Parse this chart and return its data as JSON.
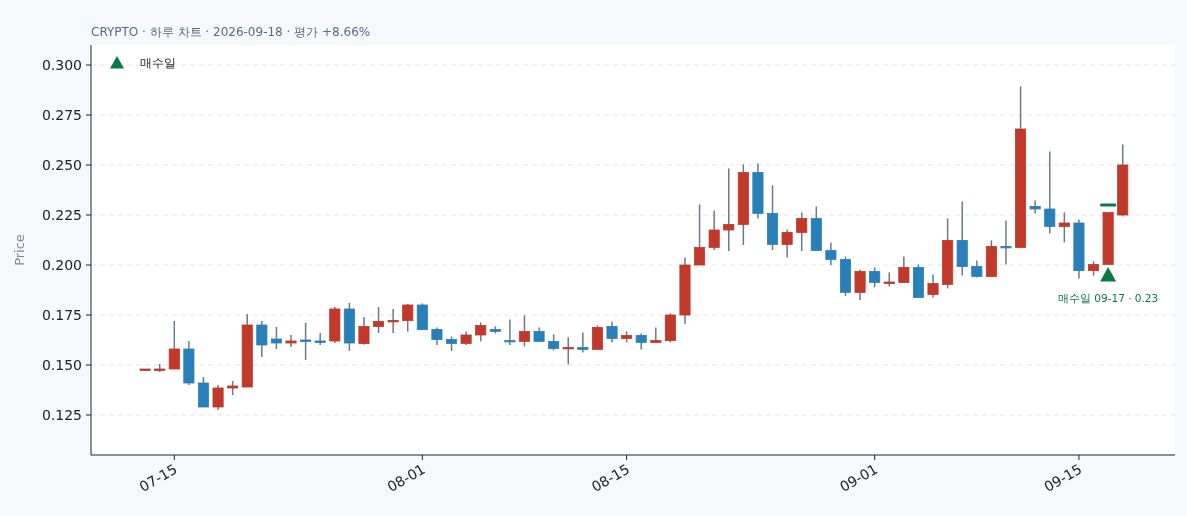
{
  "chart_data": {
    "type": "candlestick",
    "subtitle": "CRYPTO · 하루 차트 · 2026-09-18 · 평가 +8.66%",
    "ylabel": "Price",
    "x": [
      "2026-07-13",
      "2026-07-14",
      "2026-07-15",
      "2026-07-16",
      "2026-07-17",
      "2026-07-18",
      "2026-07-19",
      "2026-07-20",
      "2026-07-21",
      "2026-07-22",
      "2026-07-23",
      "2026-07-24",
      "2026-07-25",
      "2026-07-26",
      "2026-07-27",
      "2026-07-28",
      "2026-07-29",
      "2026-07-30",
      "2026-07-31",
      "2026-08-01",
      "2026-08-02",
      "2026-08-03",
      "2026-08-04",
      "2026-08-05",
      "2026-08-06",
      "2026-08-07",
      "2026-08-08",
      "2026-08-09",
      "2026-08-10",
      "2026-08-11",
      "2026-08-12",
      "2026-08-13",
      "2026-08-14",
      "2026-08-15",
      "2026-08-16",
      "2026-08-17",
      "2026-08-18",
      "2026-08-19",
      "2026-08-20",
      "2026-08-21",
      "2026-08-22",
      "2026-08-23",
      "2026-08-24",
      "2026-08-25",
      "2026-08-26",
      "2026-08-27",
      "2026-08-28",
      "2026-08-29",
      "2026-08-30",
      "2026-08-31",
      "2026-09-01",
      "2026-09-02",
      "2026-09-03",
      "2026-09-04",
      "2026-09-05",
      "2026-09-06",
      "2026-09-07",
      "2026-09-08",
      "2026-09-09",
      "2026-09-10",
      "2026-09-11",
      "2026-09-12",
      "2026-09-13",
      "2026-09-14",
      "2026-09-15",
      "2026-09-16",
      "2026-09-17",
      "2026-09-18"
    ],
    "ohlc": [
      [
        0.148,
        0.148,
        0.148,
        0.148
      ],
      [
        0.1475,
        0.1505,
        0.1465,
        0.148
      ],
      [
        0.148,
        0.172,
        0.148,
        0.158
      ],
      [
        0.158,
        0.162,
        0.14,
        0.141
      ],
      [
        0.141,
        0.144,
        0.129,
        0.129
      ],
      [
        0.129,
        0.14,
        0.1275,
        0.1385
      ],
      [
        0.1385,
        0.142,
        0.135,
        0.1395
      ],
      [
        0.139,
        0.1755,
        0.139,
        0.17
      ],
      [
        0.17,
        0.172,
        0.154,
        0.16
      ],
      [
        0.163,
        0.169,
        0.158,
        0.161
      ],
      [
        0.161,
        0.165,
        0.159,
        0.162
      ],
      [
        0.1625,
        0.171,
        0.1525,
        0.162
      ],
      [
        0.162,
        0.166,
        0.16,
        0.1618
      ],
      [
        0.162,
        0.179,
        0.161,
        0.178
      ],
      [
        0.178,
        0.181,
        0.157,
        0.161
      ],
      [
        0.1607,
        0.174,
        0.1603,
        0.1693
      ],
      [
        0.1693,
        0.179,
        0.166,
        0.1718
      ],
      [
        0.1718,
        0.178,
        0.166,
        0.1723
      ],
      [
        0.1722,
        0.1805,
        0.1667,
        0.18
      ],
      [
        0.18,
        0.1808,
        0.1677,
        0.1677
      ],
      [
        0.1678,
        0.1688,
        0.16,
        0.1627
      ],
      [
        0.1628,
        0.1643,
        0.157,
        0.1608
      ],
      [
        0.1608,
        0.1668,
        0.16,
        0.165
      ],
      [
        0.165,
        0.1713,
        0.1618,
        0.1698
      ],
      [
        0.1678,
        0.1693,
        0.1658,
        0.1668
      ],
      [
        0.1623,
        0.1728,
        0.16,
        0.1618
      ],
      [
        0.1618,
        0.1748,
        0.1593,
        0.1668
      ],
      [
        0.1668,
        0.1688,
        0.1618,
        0.1618
      ],
      [
        0.1618,
        0.1653,
        0.1573,
        0.1583
      ],
      [
        0.1583,
        0.1638,
        0.1503,
        0.1588
      ],
      [
        0.1588,
        0.1663,
        0.1563,
        0.1578
      ],
      [
        0.1578,
        0.1698,
        0.1578,
        0.1688
      ],
      [
        0.1693,
        0.1718,
        0.1613,
        0.1633
      ],
      [
        0.1633,
        0.1668,
        0.1613,
        0.1648
      ],
      [
        0.1648,
        0.1658,
        0.1578,
        0.1613
      ],
      [
        0.1613,
        0.1688,
        0.1613,
        0.1623
      ],
      [
        0.1622,
        0.1758,
        0.1613,
        0.175
      ],
      [
        0.175,
        0.2038,
        0.1705,
        0.2
      ],
      [
        0.2,
        0.2303,
        0.2,
        0.2088
      ],
      [
        0.2088,
        0.2273,
        0.2075,
        0.2175
      ],
      [
        0.2175,
        0.2483,
        0.207,
        0.2203
      ],
      [
        0.2203,
        0.2503,
        0.21,
        0.2463
      ],
      [
        0.2463,
        0.2508,
        0.2233,
        0.2258
      ],
      [
        0.2258,
        0.2398,
        0.2075,
        0.2103
      ],
      [
        0.2103,
        0.2178,
        0.2038,
        0.2163
      ],
      [
        0.2163,
        0.2263,
        0.207,
        0.2233
      ],
      [
        0.2233,
        0.2293,
        0.2073,
        0.2073
      ],
      [
        0.2073,
        0.2113,
        0.2,
        0.2028
      ],
      [
        0.2028,
        0.2042,
        0.1845,
        0.1863
      ],
      [
        0.1863,
        0.1978,
        0.1825,
        0.1968
      ],
      [
        0.1968,
        0.1988,
        0.1888,
        0.1913
      ],
      [
        0.1913,
        0.1963,
        0.1893,
        0.1915
      ],
      [
        0.1913,
        0.2043,
        0.1913,
        0.1988
      ],
      [
        0.1988,
        0.2003,
        0.1838,
        0.1838
      ],
      [
        0.1853,
        0.1953,
        0.1838,
        0.1908
      ],
      [
        0.1903,
        0.2233,
        0.1883,
        0.2123
      ],
      [
        0.2123,
        0.2318,
        0.1948,
        0.1993
      ],
      [
        0.1993,
        0.2023,
        0.1938,
        0.1943
      ],
      [
        0.1943,
        0.2123,
        0.1943,
        0.2093
      ],
      [
        0.2093,
        0.2223,
        0.2003,
        0.209
      ],
      [
        0.2088,
        0.2893,
        0.2088,
        0.268
      ],
      [
        0.2293,
        0.2322,
        0.2258,
        0.228
      ],
      [
        0.228,
        0.2568,
        0.2158,
        0.2193
      ],
      [
        0.2193,
        0.2263,
        0.2113,
        0.221
      ],
      [
        0.221,
        0.2227,
        0.1933,
        0.1972
      ],
      [
        0.1972,
        0.2018,
        0.1947,
        0.2003
      ],
      [
        0.2003,
        0.2263,
        0.2003,
        0.2263
      ],
      [
        0.225,
        0.2603,
        0.2243,
        0.25
      ]
    ],
    "colors": [
      "#c0392b",
      "#c0392b",
      "#c0392b",
      "#2980b9",
      "#2980b9",
      "#c0392b",
      "#c0392b",
      "#c0392b",
      "#2980b9",
      "#2980b9",
      "#c0392b",
      "#2980b9",
      "#2980b9",
      "#c0392b",
      "#2980b9",
      "#c0392b",
      "#c0392b",
      "#c0392b",
      "#c0392b",
      "#2980b9",
      "#2980b9",
      "#2980b9",
      "#c0392b",
      "#c0392b",
      "#2980b9",
      "#2980b9",
      "#c0392b",
      "#2980b9",
      "#2980b9",
      "#c0392b",
      "#2980b9",
      "#c0392b",
      "#2980b9",
      "#c0392b",
      "#2980b9",
      "#c0392b",
      "#c0392b",
      "#c0392b",
      "#c0392b",
      "#c0392b",
      "#c0392b",
      "#c0392b",
      "#2980b9",
      "#2980b9",
      "#c0392b",
      "#c0392b",
      "#2980b9",
      "#2980b9",
      "#2980b9",
      "#c0392b",
      "#2980b9",
      "#c0392b",
      "#c0392b",
      "#2980b9",
      "#c0392b",
      "#c0392b",
      "#2980b9",
      "#2980b9",
      "#c0392b",
      "#2980b9",
      "#c0392b",
      "#2980b9",
      "#2980b9",
      "#c0392b",
      "#2980b9",
      "#c0392b",
      "#c0392b",
      "#c0392b"
    ],
    "series": [
      {
        "type": "scatter",
        "name": "매수일",
        "color": "#0b7a45",
        "marker": "triangle",
        "x": [
          "2026-09-17"
        ],
        "values": [
          0.195
        ]
      },
      {
        "type": "line",
        "color": "#0b7a45",
        "x": [
          "2026-09-16T13:00",
          "2026-09-17T11:00"
        ],
        "values": [
          0.23,
          0.23
        ]
      }
    ],
    "annotations": [
      "매수일 09-17 · 0.23"
    ],
    "xlim": [
      "2026-07-09T07:00",
      "2026-09-21T14:00"
    ],
    "xticks": [
      {
        "value": "2026-07-15",
        "label": "07-15"
      },
      {
        "value": "2026-08-01",
        "label": "08-01"
      },
      {
        "value": "2026-08-15",
        "label": "08-15"
      },
      {
        "value": "2026-09-01",
        "label": "09-01"
      },
      {
        "value": "2026-09-15",
        "label": "09-15"
      }
    ],
    "ylim": [
      0.105,
      0.31
    ],
    "yticks": [
      {
        "value": 0.125,
        "label": "0.125"
      },
      {
        "value": 0.15,
        "label": "0.150"
      },
      {
        "value": 0.175,
        "label": "0.175"
      },
      {
        "value": 0.2,
        "label": "0.200"
      },
      {
        "value": 0.225,
        "label": "0.225"
      },
      {
        "value": 0.25,
        "label": "0.250"
      },
      {
        "value": 0.275,
        "label": "0.275"
      },
      {
        "value": 0.3,
        "label": "0.300"
      }
    ],
    "grid": "y",
    "legend": "top left"
  }
}
